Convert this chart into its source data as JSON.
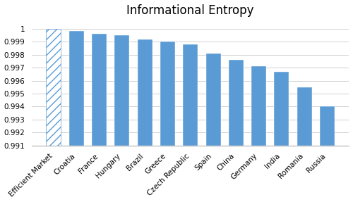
{
  "categories": [
    "Efficient Market",
    "Croatia",
    "France",
    "Hungary",
    "Brazil",
    "Greece",
    "Czech Republic",
    "Spain",
    "China",
    "Germany",
    "India",
    "Romania",
    "Russia"
  ],
  "values": [
    1.0,
    0.9998,
    0.9996,
    0.9995,
    0.9992,
    0.999,
    0.9988,
    0.9981,
    0.9976,
    0.9971,
    0.9967,
    0.9955,
    0.994
  ],
  "bar_color": "#5B9BD5",
  "title": "Informational Entropy",
  "ylim_min": 0.991,
  "ylim_max": 1.0007,
  "yticks": [
    0.991,
    0.992,
    0.993,
    0.994,
    0.995,
    0.996,
    0.997,
    0.998,
    0.999,
    1.0
  ],
  "title_fontsize": 12,
  "tick_fontsize": 7.5,
  "background_color": "#ffffff",
  "grid_color": "#d0d0d0",
  "hatch_pattern": "///",
  "bar_width": 0.65
}
